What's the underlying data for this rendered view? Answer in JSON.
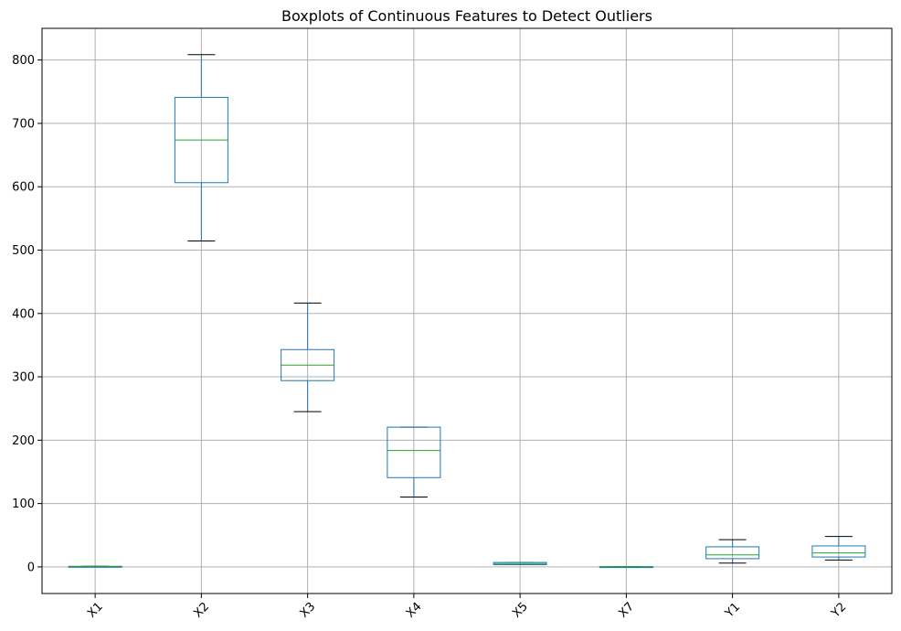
{
  "chart_data": {
    "type": "boxplot",
    "title": "Boxplots of Continuous Features to Detect Outliers",
    "xlabel": "",
    "ylabel": "",
    "ylim": [
      -42,
      850
    ],
    "yticks": [
      0,
      100,
      200,
      300,
      400,
      500,
      600,
      700,
      800
    ],
    "grid": true,
    "categories": [
      "X1",
      "X2",
      "X3",
      "X4",
      "X5",
      "X7",
      "Y1",
      "Y2"
    ],
    "boxes": [
      {
        "name": "X1",
        "whisker_low": 0.62,
        "q1": 0.68,
        "median": 0.75,
        "q3": 0.83,
        "whisker_high": 0.98
      },
      {
        "name": "X2",
        "whisker_low": 514.5,
        "q1": 606.4,
        "median": 673.8,
        "q3": 741.1,
        "whisker_high": 808.5
      },
      {
        "name": "X3",
        "whisker_low": 245,
        "q1": 294,
        "median": 318.5,
        "q3": 343,
        "whisker_high": 416.5
      },
      {
        "name": "X4",
        "whisker_low": 110.25,
        "q1": 140.9,
        "median": 183.75,
        "q3": 220.5,
        "whisker_high": 220.5
      },
      {
        "name": "X5",
        "whisker_low": 3.5,
        "q1": 3.5,
        "median": 5.25,
        "q3": 7,
        "whisker_high": 7
      },
      {
        "name": "X7",
        "whisker_low": 0,
        "q1": 0.1,
        "median": 0.25,
        "q3": 0.4,
        "whisker_high": 0.4
      },
      {
        "name": "Y1",
        "whisker_low": 6,
        "q1": 13,
        "median": 18.9,
        "q3": 31.7,
        "whisker_high": 43
      },
      {
        "name": "Y2",
        "whisker_low": 10.9,
        "q1": 15.6,
        "median": 22.1,
        "q3": 33.1,
        "whisker_high": 48
      }
    ],
    "colors": {
      "box": "#1f77b4",
      "median": "#2ca02c",
      "whisker_cap": "#000000",
      "grid": "#b0b0b0"
    }
  }
}
